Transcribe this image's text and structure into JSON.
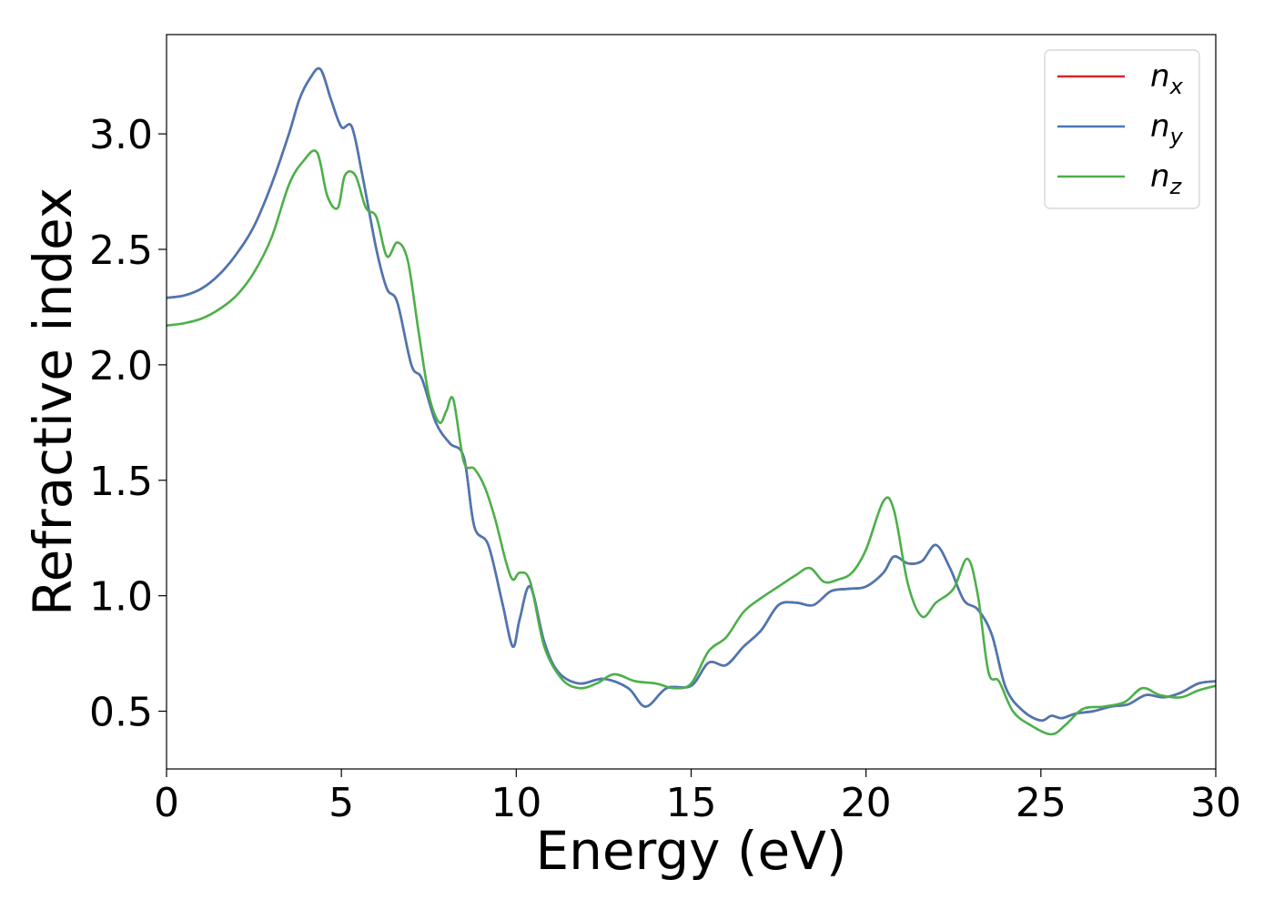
{
  "chart_data": {
    "type": "line",
    "xlabel": "Energy (eV)",
    "ylabel": "Refractive index",
    "xlim": [
      0,
      30
    ],
    "ylim": [
      0.25,
      3.43
    ],
    "xticks": [
      0,
      5,
      10,
      15,
      20,
      25,
      30
    ],
    "yticks": [
      0.5,
      1.0,
      1.5,
      2.0,
      2.5,
      3.0
    ],
    "xtick_labels": [
      "0",
      "5",
      "10",
      "15",
      "20",
      "25",
      "30"
    ],
    "ytick_labels": [
      "0.5",
      "1.0",
      "1.5",
      "2.0",
      "2.5",
      "3.0"
    ],
    "grid": false,
    "legend_position": "top-right",
    "series": [
      {
        "name": "n_x",
        "legend_main": "n",
        "legend_sub": "x",
        "color": "#d62728",
        "x": [
          0,
          0.5,
          1,
          1.5,
          2,
          2.5,
          3,
          3.5,
          3.8,
          4.1,
          4.4,
          4.7,
          5.0,
          5.3,
          5.6,
          6.0,
          6.3,
          6.6,
          7.0,
          7.3,
          7.7,
          8.1,
          8.5,
          8.8,
          9.2,
          9.6,
          9.9,
          10.1,
          10.4,
          10.8,
          11.2,
          11.8,
          12.5,
          13.2,
          13.7,
          14.3,
          15.0,
          15.5,
          16.0,
          16.5,
          17.0,
          17.5,
          18.0,
          18.5,
          19.0,
          19.5,
          20.0,
          20.5,
          20.8,
          21.2,
          21.6,
          22.0,
          22.4,
          22.8,
          23.2,
          23.6,
          24.0,
          24.5,
          25.0,
          25.3,
          25.6,
          26.0,
          26.5,
          27.0,
          27.5,
          28.0,
          28.5,
          29.0,
          29.5,
          30.0
        ],
        "y": [
          2.29,
          2.3,
          2.33,
          2.39,
          2.48,
          2.6,
          2.78,
          3.0,
          3.15,
          3.24,
          3.28,
          3.15,
          3.03,
          3.03,
          2.82,
          2.5,
          2.33,
          2.27,
          2.0,
          1.94,
          1.75,
          1.66,
          1.6,
          1.3,
          1.22,
          0.97,
          0.78,
          0.9,
          1.04,
          0.8,
          0.67,
          0.62,
          0.64,
          0.6,
          0.52,
          0.6,
          0.61,
          0.71,
          0.7,
          0.78,
          0.85,
          0.96,
          0.97,
          0.96,
          1.02,
          1.03,
          1.04,
          1.1,
          1.17,
          1.14,
          1.15,
          1.22,
          1.12,
          0.98,
          0.94,
          0.83,
          0.6,
          0.5,
          0.46,
          0.48,
          0.47,
          0.49,
          0.5,
          0.52,
          0.53,
          0.57,
          0.56,
          0.58,
          0.62,
          0.63
        ]
      },
      {
        "name": "n_y",
        "legend_main": "n",
        "legend_sub": "y",
        "color": "#4a78b3",
        "x": [
          0,
          0.5,
          1,
          1.5,
          2,
          2.5,
          3,
          3.5,
          3.8,
          4.1,
          4.4,
          4.7,
          5.0,
          5.3,
          5.6,
          6.0,
          6.3,
          6.6,
          7.0,
          7.3,
          7.7,
          8.1,
          8.5,
          8.8,
          9.2,
          9.6,
          9.9,
          10.1,
          10.4,
          10.8,
          11.2,
          11.8,
          12.5,
          13.2,
          13.7,
          14.3,
          15.0,
          15.5,
          16.0,
          16.5,
          17.0,
          17.5,
          18.0,
          18.5,
          19.0,
          19.5,
          20.0,
          20.5,
          20.8,
          21.2,
          21.6,
          22.0,
          22.4,
          22.8,
          23.2,
          23.6,
          24.0,
          24.5,
          25.0,
          25.3,
          25.6,
          26.0,
          26.5,
          27.0,
          27.5,
          28.0,
          28.5,
          29.0,
          29.5,
          30.0
        ],
        "y": [
          2.29,
          2.3,
          2.33,
          2.39,
          2.48,
          2.6,
          2.78,
          3.0,
          3.15,
          3.24,
          3.28,
          3.15,
          3.03,
          3.03,
          2.82,
          2.5,
          2.33,
          2.27,
          2.0,
          1.94,
          1.75,
          1.66,
          1.6,
          1.3,
          1.22,
          0.97,
          0.78,
          0.9,
          1.04,
          0.8,
          0.67,
          0.62,
          0.64,
          0.6,
          0.52,
          0.6,
          0.61,
          0.71,
          0.7,
          0.78,
          0.85,
          0.96,
          0.97,
          0.96,
          1.02,
          1.03,
          1.04,
          1.1,
          1.17,
          1.14,
          1.15,
          1.22,
          1.12,
          0.98,
          0.94,
          0.83,
          0.6,
          0.5,
          0.46,
          0.48,
          0.47,
          0.49,
          0.5,
          0.52,
          0.53,
          0.57,
          0.56,
          0.58,
          0.62,
          0.63
        ]
      },
      {
        "name": "n_z",
        "legend_main": "n",
        "legend_sub": "z",
        "color": "#4daf4a",
        "x": [
          0,
          0.5,
          1,
          1.5,
          2,
          2.5,
          3,
          3.5,
          3.9,
          4.3,
          4.6,
          4.9,
          5.1,
          5.4,
          5.7,
          6.0,
          6.3,
          6.6,
          6.9,
          7.2,
          7.5,
          7.8,
          8.0,
          8.2,
          8.5,
          8.8,
          9.1,
          9.4,
          9.7,
          9.9,
          10.1,
          10.4,
          10.8,
          11.3,
          11.8,
          12.3,
          12.8,
          13.4,
          14.0,
          14.5,
          15.0,
          15.5,
          16.0,
          16.5,
          17.0,
          17.5,
          18.0,
          18.4,
          18.8,
          19.2,
          19.6,
          20.0,
          20.5,
          20.8,
          21.2,
          21.6,
          22.0,
          22.5,
          22.9,
          23.2,
          23.5,
          23.8,
          24.2,
          24.7,
          25.3,
          25.7,
          26.2,
          26.8,
          27.4,
          27.9,
          28.4,
          29.0,
          29.5,
          30.0
        ],
        "y": [
          2.17,
          2.18,
          2.2,
          2.24,
          2.3,
          2.4,
          2.55,
          2.78,
          2.88,
          2.92,
          2.73,
          2.68,
          2.82,
          2.82,
          2.68,
          2.64,
          2.47,
          2.53,
          2.45,
          2.15,
          1.87,
          1.75,
          1.8,
          1.85,
          1.58,
          1.55,
          1.47,
          1.33,
          1.15,
          1.07,
          1.1,
          1.06,
          0.78,
          0.64,
          0.6,
          0.62,
          0.66,
          0.63,
          0.62,
          0.6,
          0.62,
          0.76,
          0.82,
          0.93,
          0.99,
          1.04,
          1.09,
          1.12,
          1.06,
          1.07,
          1.1,
          1.2,
          1.41,
          1.37,
          1.05,
          0.91,
          0.97,
          1.03,
          1.16,
          1.0,
          0.67,
          0.63,
          0.5,
          0.44,
          0.4,
          0.44,
          0.51,
          0.52,
          0.54,
          0.6,
          0.57,
          0.56,
          0.59,
          0.61
        ]
      }
    ]
  }
}
